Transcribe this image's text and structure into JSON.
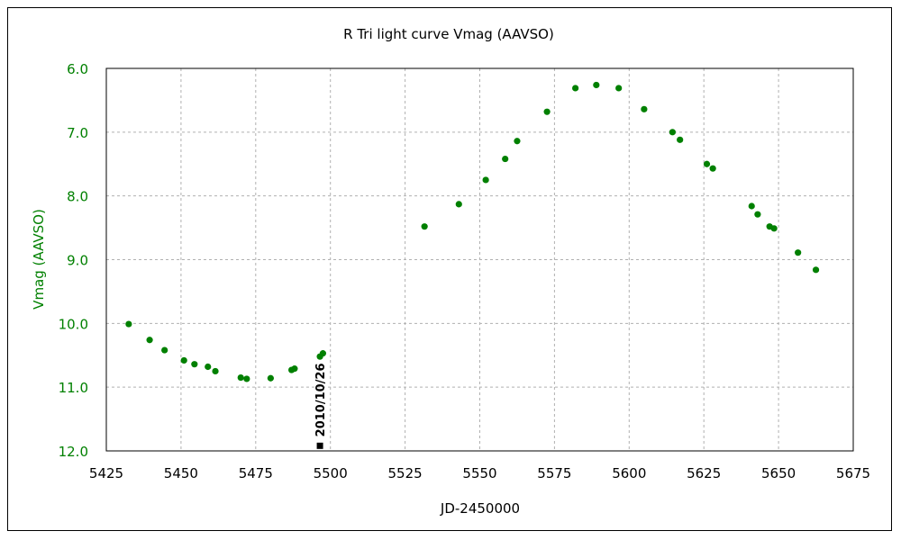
{
  "chart_data": {
    "type": "scatter",
    "title": "R Tri   light curve  Vmag (AAVSO)",
    "xlabel": "JD-2450000",
    "ylabel": "Vmag (AAVSO)",
    "xlim": [
      5425,
      5675
    ],
    "ylim": [
      12.0,
      6.0
    ],
    "y_inverted": true,
    "xticks": [
      "5425",
      "5450",
      "5475",
      "5500",
      "5525",
      "5550",
      "5575",
      "5600",
      "5625",
      "5650",
      "5675"
    ],
    "yticks": [
      "6.0",
      "7.0",
      "8.0",
      "9.0",
      "10.0",
      "11.0",
      "12.0"
    ],
    "xtick_values": [
      5425,
      5450,
      5475,
      5500,
      5525,
      5550,
      5575,
      5600,
      5625,
      5650,
      5675
    ],
    "ytick_values": [
      6,
      7,
      8,
      9,
      10,
      11,
      12
    ],
    "grid": true,
    "series_color": "#008000",
    "series": [
      {
        "points": [
          [
            5432.5,
            10.01
          ],
          [
            5439.5,
            10.26
          ],
          [
            5444.5,
            10.42
          ],
          [
            5451.0,
            10.58
          ],
          [
            5454.5,
            10.64
          ],
          [
            5459.0,
            10.68
          ],
          [
            5461.5,
            10.75
          ],
          [
            5470.0,
            10.85
          ],
          [
            5472.0,
            10.87
          ],
          [
            5480.0,
            10.86
          ],
          [
            5487.0,
            10.73
          ],
          [
            5488.0,
            10.71
          ],
          [
            5496.5,
            10.52
          ],
          [
            5497.5,
            10.47
          ],
          [
            5531.5,
            8.48
          ],
          [
            5543.0,
            8.13
          ],
          [
            5552.0,
            7.75
          ],
          [
            5558.5,
            7.42
          ],
          [
            5562.5,
            7.14
          ],
          [
            5572.5,
            6.68
          ],
          [
            5582.0,
            6.31
          ],
          [
            5589.0,
            6.26
          ],
          [
            5596.5,
            6.31
          ],
          [
            5605.0,
            6.64
          ],
          [
            5614.5,
            7.0
          ],
          [
            5617.0,
            7.12
          ],
          [
            5626.0,
            7.5
          ],
          [
            5628.0,
            7.57
          ],
          [
            5641.0,
            8.16
          ],
          [
            5643.0,
            8.29
          ],
          [
            5647.0,
            8.48
          ],
          [
            5648.5,
            8.51
          ],
          [
            5656.5,
            8.89
          ],
          [
            5662.5,
            9.16
          ]
        ]
      }
    ],
    "annotation": {
      "text": "2010/10/26",
      "x": 5496.5,
      "y": 11.92
    }
  }
}
